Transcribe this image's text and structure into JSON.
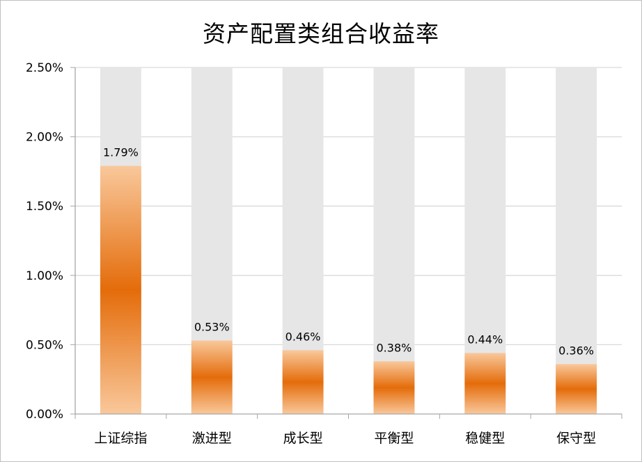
{
  "chart_data": {
    "type": "bar",
    "title": "资产配置类组合收益率",
    "categories": [
      "上证综指",
      "激进型",
      "成长型",
      "平衡型",
      "稳健型",
      "保守型"
    ],
    "values": [
      1.79,
      0.53,
      0.46,
      0.38,
      0.44,
      0.36
    ],
    "value_unit": "%",
    "data_labels": [
      "1.79%",
      "0.53%",
      "0.46%",
      "0.38%",
      "0.44%",
      "0.36%"
    ],
    "ylim": [
      0,
      2.5
    ],
    "yticks": [
      0,
      0.5,
      1.0,
      1.5,
      2.0,
      2.5
    ],
    "ytick_labels": [
      "0.00%",
      "0.50%",
      "1.00%",
      "1.50%",
      "2.00%",
      "2.50%"
    ],
    "background_bar_value": 2.5,
    "xlabel": "",
    "ylabel": "",
    "grid": true,
    "legend": "none",
    "colors": {
      "bar_dark": "#e46c0a",
      "bar_light": "#f9c89b",
      "background_bar": "#e6e6e6",
      "gridline": "#d9d9d9",
      "axis": "#a6a6a6"
    }
  }
}
